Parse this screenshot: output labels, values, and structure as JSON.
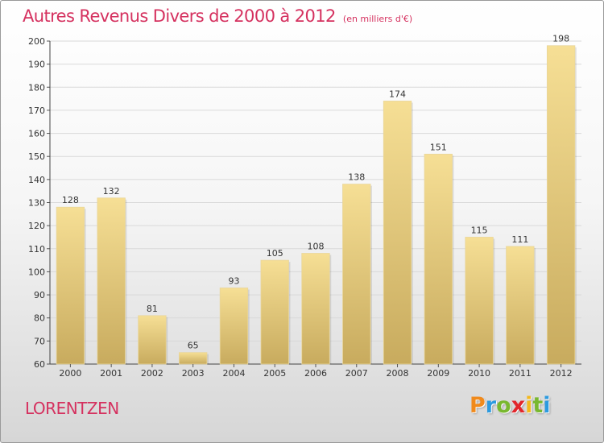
{
  "header": {
    "title": "Autres Revenus Divers de 2000 à 2012",
    "subtitle": "(en milliers d'€)"
  },
  "footer": {
    "commune": "LORENTZEN"
  },
  "logo": {
    "letters": [
      "P",
      "r",
      "o",
      "x",
      "i",
      "t",
      "i"
    ],
    "colors": [
      "#f08a1c",
      "#2c9adf",
      "#79b82f",
      "#e2262b",
      "#f4b81b",
      "#79b82f",
      "#2c9adf"
    ]
  },
  "colors": {
    "accent": "#d5315f",
    "bar_top": "#f6df95",
    "bar_bottom": "#c8ab5e"
  },
  "chart_data": {
    "type": "bar",
    "title": "Autres Revenus Divers de 2000 à 2012",
    "subtitle": "(en milliers d'€)",
    "categories": [
      "2000",
      "2001",
      "2002",
      "2003",
      "2004",
      "2005",
      "2006",
      "2007",
      "2008",
      "2009",
      "2010",
      "2011",
      "2012"
    ],
    "values": [
      128,
      132,
      81,
      65,
      93,
      105,
      108,
      138,
      174,
      151,
      115,
      111,
      198
    ],
    "ylim": [
      60,
      200
    ],
    "yticks": [
      60,
      70,
      80,
      90,
      100,
      110,
      120,
      130,
      140,
      150,
      160,
      170,
      180,
      190,
      200
    ],
    "grid": true
  }
}
